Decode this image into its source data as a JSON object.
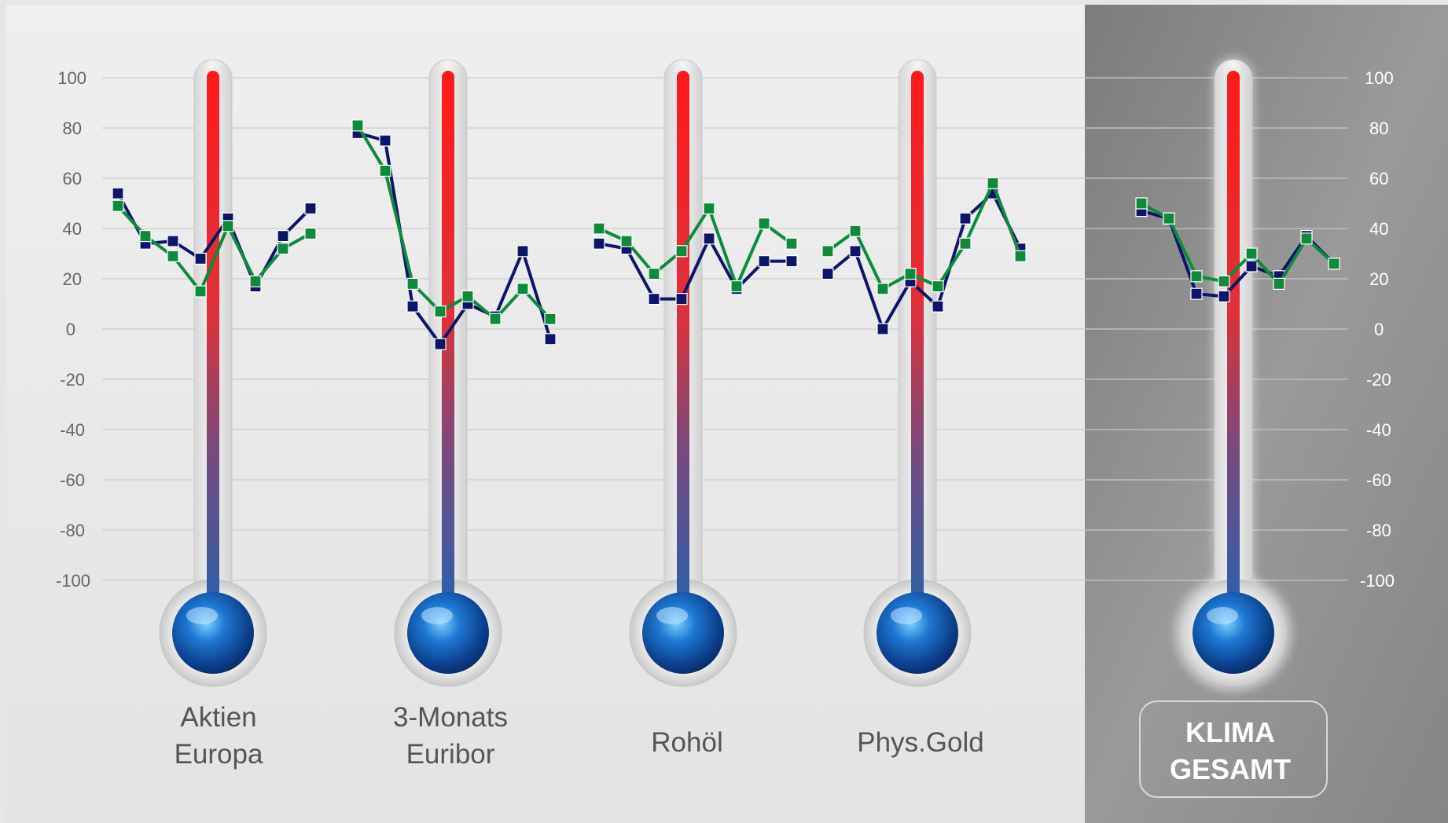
{
  "colors": {
    "panel_light": "#ececec",
    "panel_dark": "#8e8e8e",
    "series_a": "#0d1566",
    "series_b": "#0d8a3c",
    "thermo_hot": "#ff1a1a",
    "thermo_cold": "#2f5fa8",
    "label_light": "#555555",
    "label_dark": "#ffffff"
  },
  "axis": {
    "ylim": [
      -100,
      100
    ],
    "ticks": [
      "100",
      "80",
      "60",
      "40",
      "20",
      "0",
      "-20",
      "-40",
      "-60",
      "-80",
      "-100"
    ]
  },
  "chart_data": {
    "type": "line",
    "ylim": [
      -100,
      100
    ],
    "yticks": [
      100,
      80,
      60,
      40,
      20,
      0,
      -20,
      -40,
      -60,
      -80,
      -100
    ],
    "groups": [
      {
        "label_lines": [
          "Aktien",
          "Europa"
        ],
        "series": [
          {
            "values": [
              54,
              34,
              35,
              28,
              44,
              17,
              37,
              48
            ]
          },
          {
            "values": [
              49,
              37,
              29,
              15,
              41,
              19,
              32,
              38
            ]
          }
        ]
      },
      {
        "label_lines": [
          "3-Monats",
          "Euribor"
        ],
        "series": [
          {
            "values": [
              78,
              75,
              9,
              -6,
              10,
              5,
              31,
              -4
            ]
          },
          {
            "values": [
              81,
              63,
              18,
              7,
              13,
              4,
              16,
              4
            ]
          }
        ]
      },
      {
        "label_lines": [
          "Rohöl"
        ],
        "series": [
          {
            "values": [
              34,
              32,
              12,
              12,
              36,
              16,
              27,
              27
            ]
          },
          {
            "values": [
              40,
              35,
              22,
              31,
              48,
              17,
              42,
              34
            ]
          }
        ]
      },
      {
        "label_lines": [
          "Phys.Gold"
        ],
        "series": [
          {
            "values": [
              22,
              31,
              0,
              19,
              9,
              44,
              54,
              32
            ]
          },
          {
            "values": [
              31,
              39,
              16,
              22,
              17,
              34,
              58,
              29
            ]
          }
        ]
      },
      {
        "label_lines": [
          "KLIMA",
          "GESAMT"
        ],
        "highlight": true,
        "series": [
          {
            "values": [
              47,
              44,
              14,
              13,
              25,
              21,
              37,
              26
            ]
          },
          {
            "values": [
              50,
              44,
              21,
              19,
              30,
              18,
              36,
              26
            ]
          }
        ]
      }
    ]
  }
}
